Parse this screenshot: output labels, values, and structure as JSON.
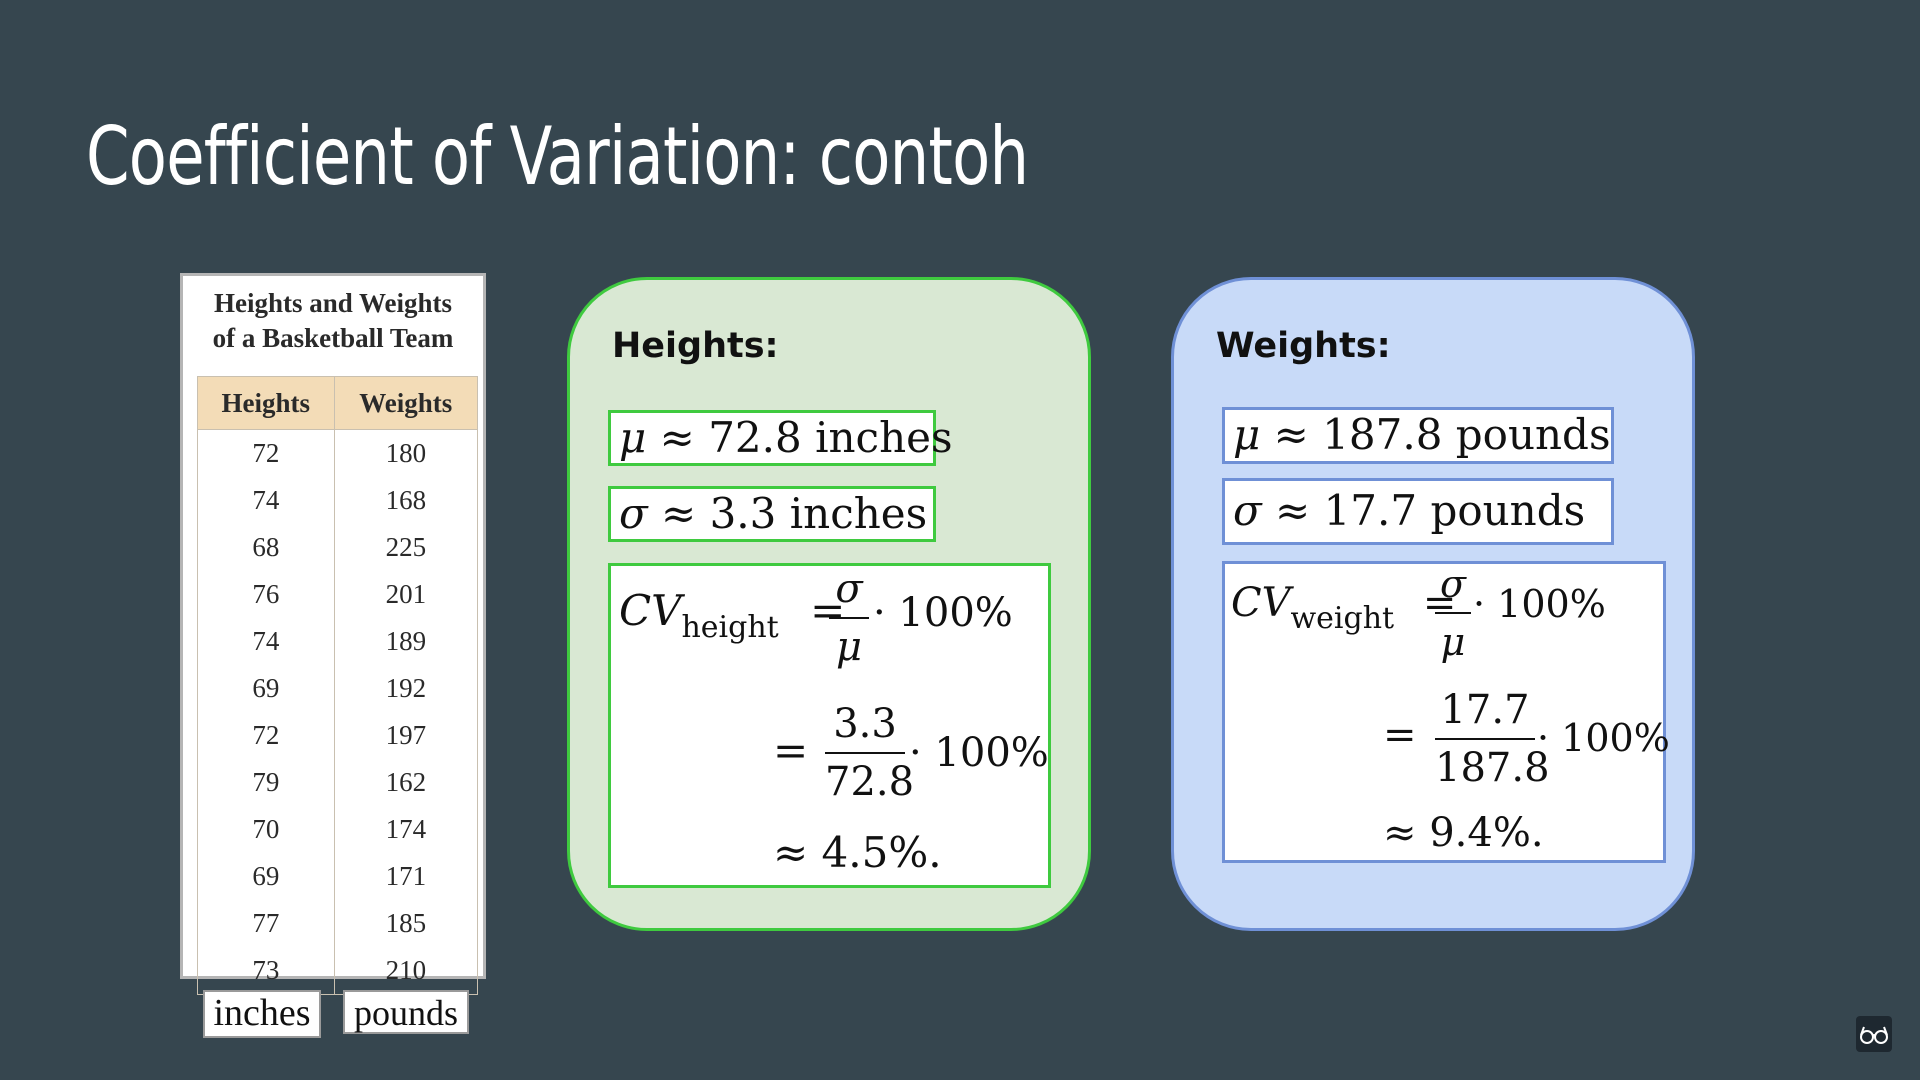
{
  "slide": {
    "title": "Coefficient of Variation: contoh"
  },
  "table": {
    "caption_line1": "Heights and Weights",
    "caption_line2": "of a Basketball Team",
    "headers": [
      "Heights",
      "Weights"
    ],
    "rows": [
      [
        "72",
        "180"
      ],
      [
        "74",
        "168"
      ],
      [
        "68",
        "225"
      ],
      [
        "76",
        "201"
      ],
      [
        "74",
        "189"
      ],
      [
        "69",
        "192"
      ],
      [
        "72",
        "197"
      ],
      [
        "79",
        "162"
      ],
      [
        "70",
        "174"
      ],
      [
        "69",
        "171"
      ],
      [
        "77",
        "185"
      ],
      [
        "73",
        "210"
      ]
    ],
    "unit_heights": "inches",
    "unit_weights": "pounds"
  },
  "heights": {
    "label": "Heights:",
    "mu_symbol": "μ",
    "mu_value": "≈ 72.8 inches",
    "sigma_symbol": "σ",
    "sigma_value": "≈ 3.3 inches",
    "cv_main": "CV",
    "cv_sub": "height",
    "frac1_num": "σ",
    "frac1_den": "μ",
    "hundred": "· 100%",
    "frac2_num": "3.3",
    "frac2_den": "72.8",
    "result": "≈ 4.5%."
  },
  "weights": {
    "label": "Weights:",
    "mu_symbol": "μ",
    "mu_value": "≈ 187.8 pounds",
    "sigma_symbol": "σ",
    "sigma_value": "≈ 17.7 pounds",
    "cv_main": "CV",
    "cv_sub": "weight",
    "frac1_num": "σ",
    "frac1_den": "μ",
    "hundred": "· 100%",
    "frac2_num": "17.7",
    "frac2_den": "187.8",
    "result": "≈ 9.4%."
  },
  "icons": {
    "corner": "glasses-icon"
  }
}
